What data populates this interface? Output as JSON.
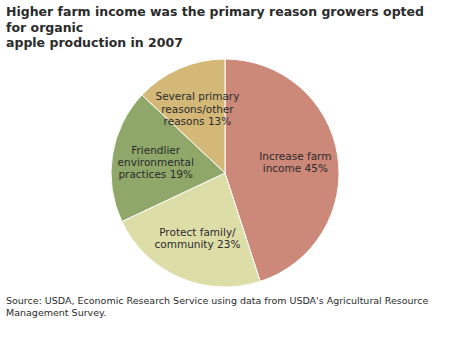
{
  "chart_data": {
    "type": "pie",
    "title": "Higher farm income was the primary reason growers opted for organic\napple production in 2007",
    "caption": "Source:  USDA, Economic Research Service using data from USDA's Agricultural Resource\nManagement Survey.",
    "categories": [
      "Increase farm\nincome 45%",
      "Protect family/\ncommunity 23%",
      "Friendlier\nenvironmental\npractices 19%",
      "Several primary\nreasons/other\nreasons 13%"
    ],
    "values": [
      45,
      23,
      19,
      13
    ],
    "colors": [
      "#cc8878",
      "#dddda8",
      "#8fa86a",
      "#d4b878"
    ]
  }
}
